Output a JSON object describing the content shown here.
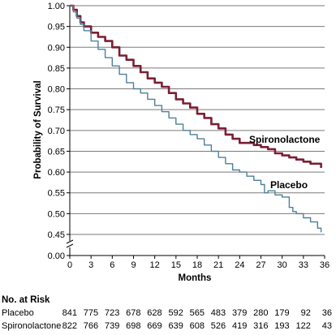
{
  "chart_data": {
    "type": "line",
    "title": "",
    "xlabel": "Months",
    "ylabel": "Probability of Survival",
    "xlim": [
      0,
      36
    ],
    "ylim": [
      0.45,
      1.0
    ],
    "x_ticks": [
      0,
      3,
      6,
      9,
      12,
      15,
      18,
      21,
      24,
      27,
      30,
      33,
      36
    ],
    "y_ticks": [
      0.45,
      0.5,
      0.55,
      0.6,
      0.65,
      0.7,
      0.75,
      0.8,
      0.85,
      0.9,
      0.95,
      1.0
    ],
    "y_tick_labels": [
      "0.45",
      "0.50",
      "0.55",
      "0.60",
      "0.65",
      "0.70",
      "0.75",
      "0.80",
      "0.85",
      "0.90",
      "0.95",
      "1.00"
    ],
    "y_axis_break_label": "0.00",
    "grid": true,
    "series": [
      {
        "name": "Spironolactone",
        "color": "#7a1f35",
        "x": [
          0,
          0.5,
          1,
          1.5,
          2,
          3,
          4,
          5,
          6,
          7,
          8,
          9,
          10,
          11,
          12,
          13,
          14,
          15,
          16,
          17,
          18,
          19,
          20,
          21,
          22,
          23,
          24,
          25,
          26,
          27,
          28,
          29,
          30,
          31,
          32,
          33,
          34,
          35,
          35.5
        ],
        "y": [
          1.0,
          0.99,
          0.975,
          0.96,
          0.95,
          0.935,
          0.925,
          0.915,
          0.9,
          0.88,
          0.87,
          0.855,
          0.84,
          0.825,
          0.815,
          0.805,
          0.79,
          0.775,
          0.765,
          0.755,
          0.74,
          0.73,
          0.715,
          0.705,
          0.69,
          0.68,
          0.67,
          0.67,
          0.665,
          0.66,
          0.655,
          0.645,
          0.64,
          0.635,
          0.63,
          0.625,
          0.62,
          0.62,
          0.61
        ]
      },
      {
        "name": "Placebo",
        "color": "#4f7f99",
        "x": [
          0,
          0.5,
          1,
          1.5,
          2,
          3,
          4,
          5,
          6,
          7,
          8,
          9,
          10,
          11,
          12,
          13,
          14,
          15,
          16,
          17,
          18,
          19,
          20,
          21,
          22,
          23,
          24,
          25,
          26,
          27,
          27.5,
          28,
          29,
          30,
          31,
          31.5,
          32,
          33,
          34,
          35,
          35.5
        ],
        "y": [
          1.0,
          0.985,
          0.97,
          0.955,
          0.94,
          0.915,
          0.895,
          0.875,
          0.855,
          0.835,
          0.815,
          0.8,
          0.79,
          0.775,
          0.76,
          0.745,
          0.73,
          0.715,
          0.7,
          0.69,
          0.68,
          0.665,
          0.65,
          0.635,
          0.62,
          0.605,
          0.6,
          0.59,
          0.58,
          0.57,
          0.55,
          0.555,
          0.545,
          0.54,
          0.515,
          0.505,
          0.5,
          0.49,
          0.48,
          0.465,
          0.455
        ]
      }
    ]
  },
  "risk_table": {
    "title": "No. at Risk",
    "rows": [
      {
        "label": "Placebo",
        "values": [
          "841",
          "775",
          "723",
          "678",
          "628",
          "592",
          "565",
          "483",
          "379",
          "280",
          "179",
          "92",
          "36"
        ]
      },
      {
        "label": "Spironolactone",
        "values": [
          "822",
          "766",
          "739",
          "698",
          "669",
          "639",
          "608",
          "526",
          "419",
          "316",
          "193",
          "122",
          "43"
        ]
      }
    ]
  }
}
